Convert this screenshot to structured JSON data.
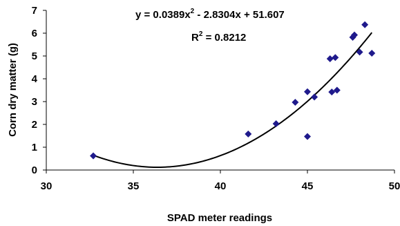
{
  "chart_data": {
    "type": "scatter",
    "xlabel": "SPAD meter readings",
    "ylabel": "Corn dry matter (g)",
    "xlim": [
      30,
      50
    ],
    "ylim": [
      0,
      7
    ],
    "xticks": [
      30,
      35,
      40,
      45,
      50
    ],
    "yticks": [
      0,
      1,
      2,
      3,
      4,
      5,
      6,
      7
    ],
    "grid": false,
    "legend": "none",
    "marker": "diamond",
    "marker_color": "#1F1A8C",
    "trendline_color": "#000000",
    "points": [
      {
        "x": 32.7,
        "y": 0.62
      },
      {
        "x": 41.6,
        "y": 1.58
      },
      {
        "x": 43.2,
        "y": 2.03
      },
      {
        "x": 44.3,
        "y": 2.97
      },
      {
        "x": 45.0,
        "y": 3.43
      },
      {
        "x": 45.0,
        "y": 1.47
      },
      {
        "x": 45.4,
        "y": 3.2
      },
      {
        "x": 46.3,
        "y": 4.88
      },
      {
        "x": 46.4,
        "y": 3.42
      },
      {
        "x": 46.6,
        "y": 4.93
      },
      {
        "x": 46.7,
        "y": 3.5
      },
      {
        "x": 47.6,
        "y": 5.82
      },
      {
        "x": 47.7,
        "y": 5.92
      },
      {
        "x": 48.0,
        "y": 5.17
      },
      {
        "x": 48.3,
        "y": 6.37
      },
      {
        "x": 48.7,
        "y": 5.12
      }
    ],
    "trendline": {
      "type": "polynomial",
      "coefficients": [
        0.0389,
        -2.8304,
        51.607
      ],
      "x_range": [
        32.7,
        48.7
      ]
    },
    "annotations": {
      "equation": {
        "prefix": "y = 0.0389x",
        "sup": "2",
        "suffix": " - 2.8304x + 51.607"
      },
      "r_squared": {
        "prefix": "R",
        "sup": "2",
        "suffix": " = 0.8212"
      }
    }
  }
}
